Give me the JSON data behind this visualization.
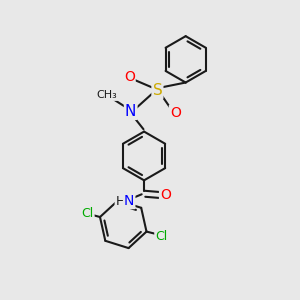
{
  "background_color": "#e8e8e8",
  "bond_color": "#1a1a1a",
  "bond_width": 1.5,
  "N_color": "#0000ff",
  "O_color": "#ff0000",
  "S_color": "#ccaa00",
  "Cl_color": "#00aa00",
  "C_color": "#1a1a1a",
  "font_size": 9,
  "figsize": [
    3.0,
    3.0
  ],
  "dpi": 100,
  "xlim": [
    0,
    10
  ],
  "ylim": [
    0,
    10
  ]
}
